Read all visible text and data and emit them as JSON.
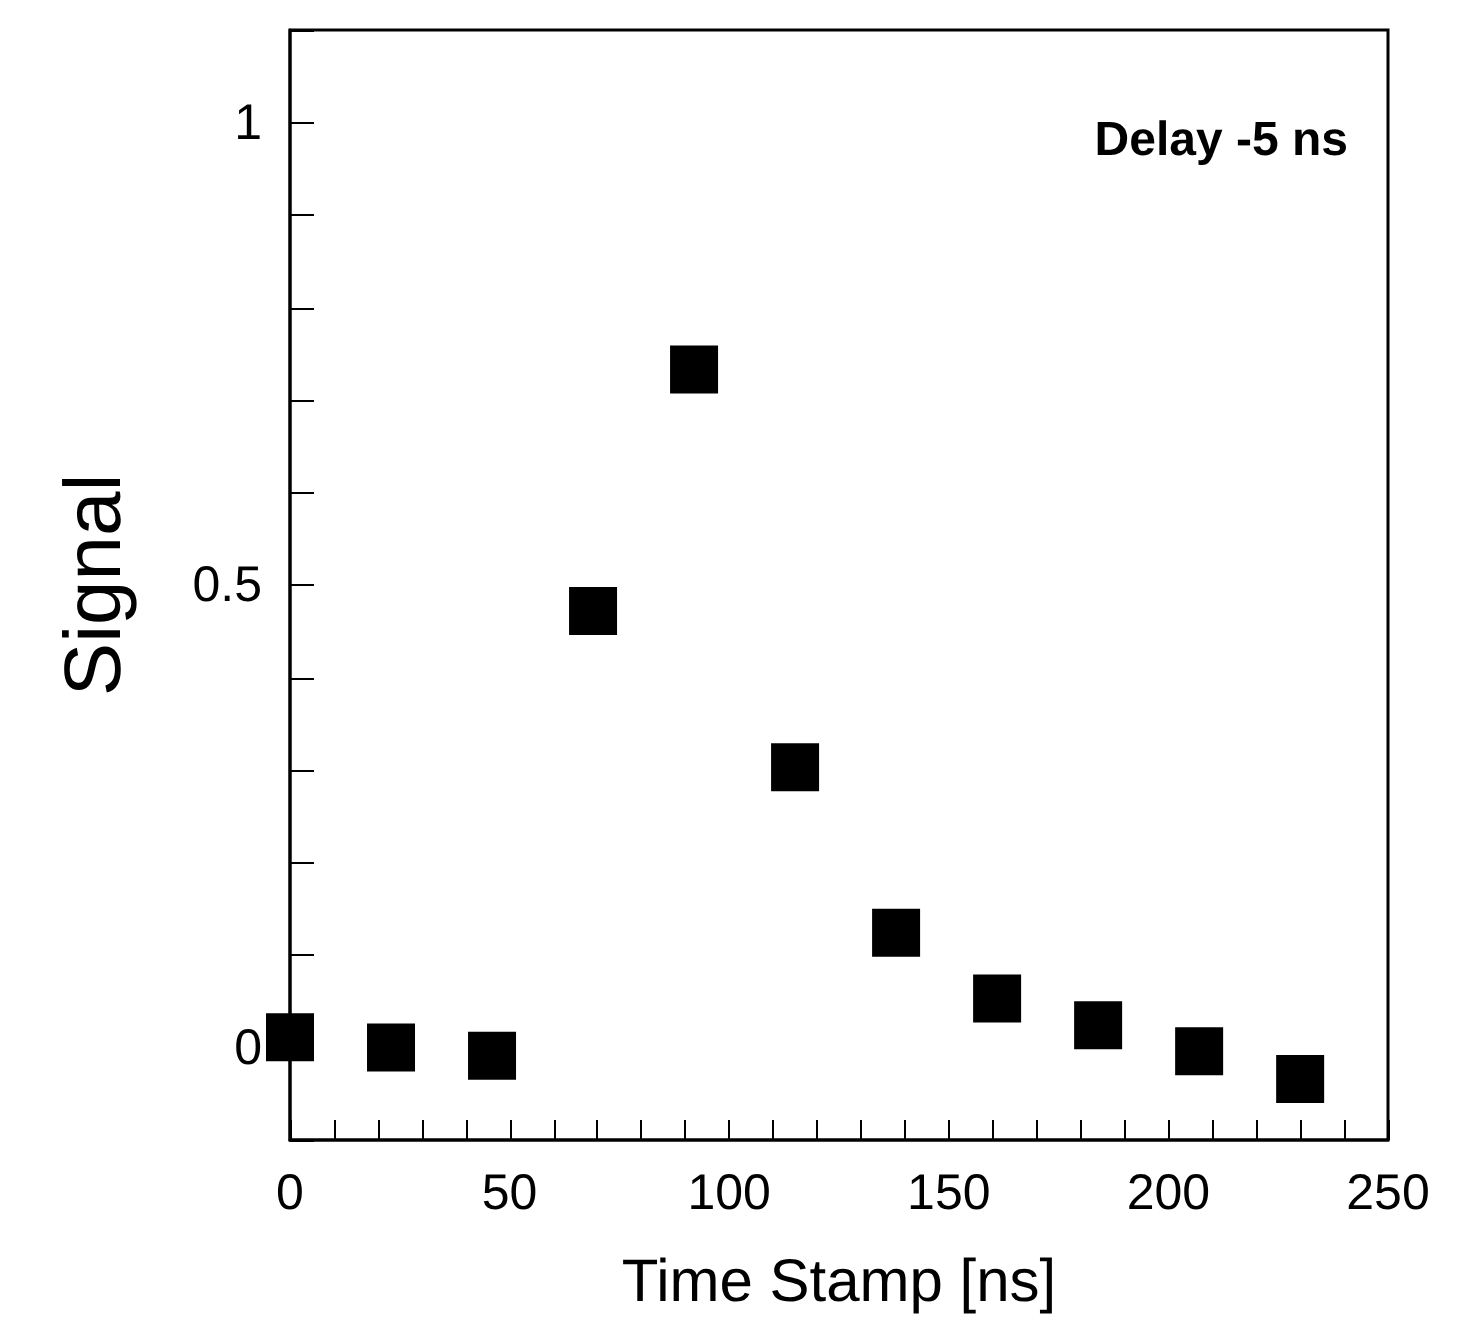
{
  "chart_data": {
    "type": "scatter",
    "xlabel": "Time Stamp [ns]",
    "ylabel": "Signal",
    "annotations": [
      "Delay -5 ns"
    ],
    "x": [
      0,
      23,
      46,
      69,
      92,
      115,
      138,
      161,
      184,
      207,
      230
    ],
    "values": [
      0.011,
      0.0,
      -0.009,
      0.472,
      0.733,
      0.303,
      0.124,
      0.053,
      0.024,
      -0.004,
      -0.034
    ],
    "color": "#000000",
    "marker": "square",
    "grid": false,
    "xlim": [
      0,
      250
    ],
    "xticks": [
      0,
      {
        "value": 10,
        "label": null
      },
      {
        "value": 20,
        "label": null
      },
      {
        "value": 30,
        "label": null
      },
      {
        "value": 40,
        "label": null
      },
      50,
      {
        "value": 60,
        "label": null
      },
      {
        "value": 70,
        "label": null
      },
      {
        "value": 80,
        "label": null
      },
      {
        "value": 90,
        "label": null
      },
      100,
      {
        "value": 110,
        "label": null
      },
      {
        "value": 120,
        "label": null
      },
      {
        "value": 130,
        "label": null
      },
      {
        "value": 140,
        "label": null
      },
      150,
      {
        "value": 160,
        "label": null
      },
      {
        "value": 170,
        "label": null
      },
      {
        "value": 180,
        "label": null
      },
      {
        "value": 190,
        "label": null
      },
      200,
      {
        "value": 210,
        "label": null
      },
      {
        "value": 220,
        "label": null
      },
      {
        "value": 230,
        "label": null
      },
      {
        "value": 240,
        "label": null
      },
      250
    ],
    "ylim": [
      -0.1,
      1.1
    ],
    "yticks": [
      {
        "value": -0.1,
        "label": null
      },
      0,
      {
        "value": 0.1,
        "label": null
      },
      {
        "value": 0.2,
        "label": null
      },
      {
        "value": 0.3,
        "label": null
      },
      {
        "value": 0.4,
        "label": null
      },
      0.5,
      {
        "value": 0.6,
        "label": null
      },
      {
        "value": 0.7,
        "label": null
      },
      {
        "value": 0.8,
        "label": null
      },
      {
        "value": 0.9,
        "label": null
      },
      1,
      {
        "value": 1.1,
        "label": null
      }
    ]
  }
}
